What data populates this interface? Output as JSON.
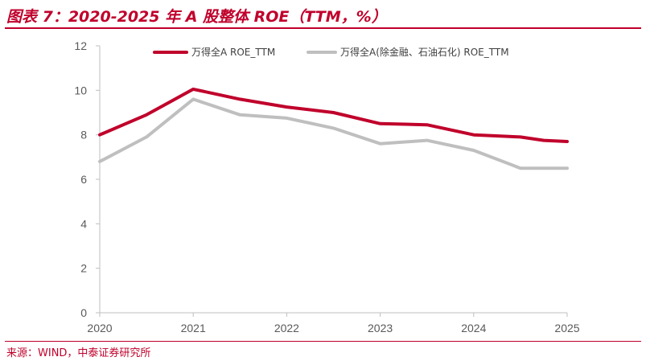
{
  "title": "图表 7：2020-2025 年 A 股整体 ROE（TTM，%）",
  "source": "来源：WIND，中泰证券研究所",
  "colors": {
    "accent": "#c0002b",
    "series_1": "#c0002b",
    "series_2": "#bfbfbf"
  },
  "chart_data": {
    "type": "line",
    "title": "",
    "xlabel": "",
    "ylabel": "",
    "xlim": [
      2020,
      2025
    ],
    "ylim": [
      0,
      12
    ],
    "y_ticks": [
      "0",
      "2",
      "4",
      "6",
      "8",
      "10",
      "12"
    ],
    "x_ticks": [
      "2020",
      "2021",
      "2022",
      "2023",
      "2024",
      "2025"
    ],
    "grid": false,
    "legend_position": "top",
    "series": [
      {
        "name": "万得全A ROE_TTM",
        "x": [
          2020.0,
          2020.5,
          2021.0,
          2021.5,
          2022.0,
          2022.5,
          2023.0,
          2023.5,
          2024.0,
          2024.5,
          2024.75,
          2025.0
        ],
        "values": [
          8.0,
          8.9,
          10.05,
          9.6,
          9.25,
          9.0,
          8.5,
          8.45,
          8.0,
          7.9,
          7.75,
          7.7
        ]
      },
      {
        "name": "万得全A(除金融、石油石化) ROE_TTM",
        "x": [
          2020.0,
          2020.5,
          2021.0,
          2021.5,
          2022.0,
          2022.5,
          2023.0,
          2023.5,
          2024.0,
          2024.5,
          2025.0
        ],
        "values": [
          6.8,
          7.9,
          9.6,
          8.9,
          8.75,
          8.3,
          7.6,
          7.75,
          7.3,
          6.5,
          6.5
        ]
      }
    ]
  }
}
